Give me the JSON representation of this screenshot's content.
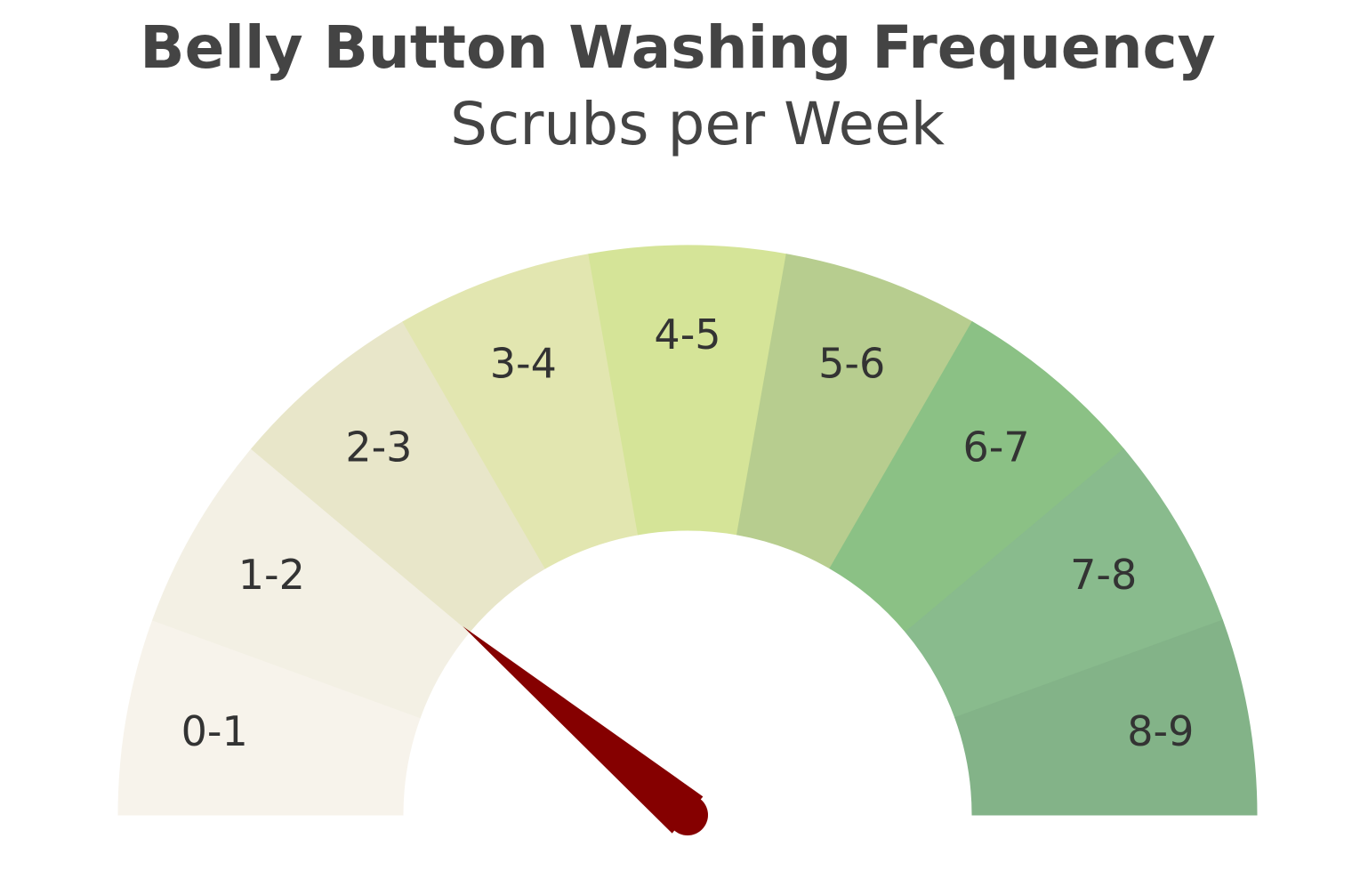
{
  "chart_data": {
    "type": "gauge",
    "title": "Belly Button Washing Frequency",
    "subtitle": "Scrubs per Week",
    "range": [
      0,
      9
    ],
    "value": 2.0,
    "segments": [
      {
        "label": "0-1",
        "from": 0,
        "to": 1,
        "color": "#f7f3eb"
      },
      {
        "label": "1-2",
        "from": 1,
        "to": 2,
        "color": "#f3f0e4"
      },
      {
        "label": "2-3",
        "from": 2,
        "to": 3,
        "color": "#e8e6c9"
      },
      {
        "label": "3-4",
        "from": 3,
        "to": 4,
        "color": "#e2e6b0"
      },
      {
        "label": "4-5",
        "from": 4,
        "to": 5,
        "color": "#d5e498"
      },
      {
        "label": "5-6",
        "from": 5,
        "to": 6,
        "color": "#b7cd8f"
      },
      {
        "label": "6-7",
        "from": 6,
        "to": 7,
        "color": "#8bc185"
      },
      {
        "label": "7-8",
        "from": 7,
        "to": 8,
        "color": "#89bb8d"
      },
      {
        "label": "8-9",
        "from": 8,
        "to": 9,
        "color": "#83b388"
      }
    ],
    "needle_color": "#850000"
  }
}
